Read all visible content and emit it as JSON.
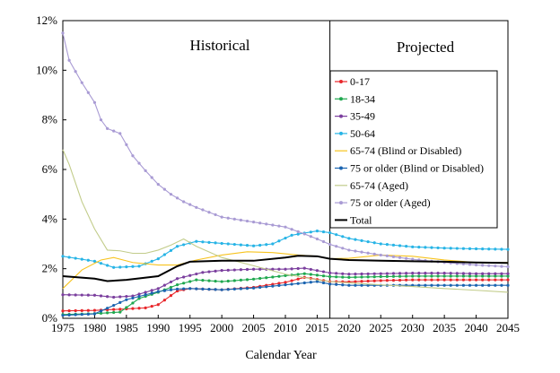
{
  "chart_data": {
    "type": "line",
    "title": "",
    "xlabel": "Calendar Year",
    "ylabel": "",
    "xlim": [
      1975,
      2045
    ],
    "ylim": [
      0,
      0.12
    ],
    "x_ticks": [
      "1975",
      "1980",
      "1985",
      "1990",
      "1995",
      "2000",
      "2005",
      "2010",
      "2015",
      "2020",
      "2025",
      "2030",
      "2035",
      "2040",
      "2045"
    ],
    "y_ticks": [
      "0%",
      "2%",
      "4%",
      "6%",
      "8%",
      "10%",
      "12%"
    ],
    "divider_year": 2017,
    "regions": {
      "historical": "Historical",
      "projected": "Projected"
    },
    "grid": false,
    "legend_position": "top-right",
    "series": [
      {
        "name": "0-17",
        "color": "#e8262a",
        "marker": true,
        "points": [
          [
            1975,
            0.003
          ],
          [
            1980,
            0.0032
          ],
          [
            1985,
            0.0038
          ],
          [
            1988,
            0.0042
          ],
          [
            1990,
            0.0055
          ],
          [
            1993,
            0.011
          ],
          [
            1995,
            0.012
          ],
          [
            2000,
            0.0115
          ],
          [
            2005,
            0.0125
          ],
          [
            2010,
            0.0145
          ],
          [
            2013,
            0.0165
          ],
          [
            2017,
            0.0148
          ],
          [
            2020,
            0.0147
          ],
          [
            2025,
            0.0152
          ],
          [
            2030,
            0.0155
          ],
          [
            2035,
            0.0155
          ],
          [
            2040,
            0.0155
          ],
          [
            2045,
            0.0155
          ]
        ]
      },
      {
        "name": "18-34",
        "color": "#1fa84f",
        "marker": true,
        "points": [
          [
            1975,
            0.0015
          ],
          [
            1980,
            0.0019
          ],
          [
            1984,
            0.0025
          ],
          [
            1987,
            0.008
          ],
          [
            1990,
            0.0105
          ],
          [
            1993,
            0.0135
          ],
          [
            1996,
            0.0155
          ],
          [
            2000,
            0.0148
          ],
          [
            2005,
            0.0158
          ],
          [
            2010,
            0.0172
          ],
          [
            2013,
            0.018
          ],
          [
            2017,
            0.0168
          ],
          [
            2020,
            0.0165
          ],
          [
            2025,
            0.0168
          ],
          [
            2030,
            0.017
          ],
          [
            2035,
            0.017
          ],
          [
            2040,
            0.017
          ],
          [
            2045,
            0.017
          ]
        ]
      },
      {
        "name": "35-49",
        "color": "#7b3f9e",
        "marker": true,
        "points": [
          [
            1975,
            0.0095
          ],
          [
            1980,
            0.0093
          ],
          [
            1983,
            0.0085
          ],
          [
            1986,
            0.009
          ],
          [
            1990,
            0.012
          ],
          [
            1993,
            0.016
          ],
          [
            1997,
            0.0185
          ],
          [
            2000,
            0.0193
          ],
          [
            2005,
            0.0198
          ],
          [
            2010,
            0.0198
          ],
          [
            2013,
            0.0202
          ],
          [
            2017,
            0.0183
          ],
          [
            2020,
            0.0178
          ],
          [
            2025,
            0.018
          ],
          [
            2030,
            0.0182
          ],
          [
            2035,
            0.0182
          ],
          [
            2040,
            0.018
          ],
          [
            2045,
            0.018
          ]
        ]
      },
      {
        "name": "50-64",
        "color": "#27b4e6",
        "marker": true,
        "points": [
          [
            1975,
            0.025
          ],
          [
            1980,
            0.023
          ],
          [
            1983,
            0.0205
          ],
          [
            1987,
            0.021
          ],
          [
            1990,
            0.024
          ],
          [
            1993,
            0.029
          ],
          [
            1996,
            0.031
          ],
          [
            2000,
            0.0302
          ],
          [
            2005,
            0.0292
          ],
          [
            2008,
            0.03
          ],
          [
            2011,
            0.0335
          ],
          [
            2015,
            0.0352
          ],
          [
            2017,
            0.0345
          ],
          [
            2020,
            0.0322
          ],
          [
            2025,
            0.03
          ],
          [
            2030,
            0.0288
          ],
          [
            2035,
            0.0283
          ],
          [
            2040,
            0.028
          ],
          [
            2045,
            0.0278
          ]
        ]
      },
      {
        "name": "65-74 (Blind or Disabled)",
        "color": "#f7c31e",
        "marker": false,
        "points": [
          [
            1975,
            0.012
          ],
          [
            1978,
            0.0195
          ],
          [
            1981,
            0.0235
          ],
          [
            1983,
            0.0245
          ],
          [
            1986,
            0.0225
          ],
          [
            1990,
            0.0215
          ],
          [
            1993,
            0.0215
          ],
          [
            1996,
            0.0235
          ],
          [
            2000,
            0.0255
          ],
          [
            2004,
            0.0268
          ],
          [
            2008,
            0.0265
          ],
          [
            2012,
            0.0255
          ],
          [
            2015,
            0.025
          ],
          [
            2017,
            0.024
          ],
          [
            2020,
            0.0242
          ],
          [
            2025,
            0.0255
          ],
          [
            2030,
            0.025
          ],
          [
            2035,
            0.0235
          ],
          [
            2040,
            0.0225
          ],
          [
            2045,
            0.0225
          ]
        ]
      },
      {
        "name": "75 or older (Blind or Disabled)",
        "color": "#1a64b0",
        "marker": true,
        "points": [
          [
            1975,
            0.0012
          ],
          [
            1980,
            0.0018
          ],
          [
            1985,
            0.0075
          ],
          [
            1990,
            0.0108
          ],
          [
            1993,
            0.0118
          ],
          [
            1995,
            0.012
          ],
          [
            2000,
            0.0115
          ],
          [
            2005,
            0.0122
          ],
          [
            2010,
            0.0135
          ],
          [
            2015,
            0.0148
          ],
          [
            2017,
            0.0138
          ],
          [
            2020,
            0.0133
          ],
          [
            2025,
            0.0133
          ],
          [
            2030,
            0.0133
          ],
          [
            2035,
            0.0133
          ],
          [
            2040,
            0.0133
          ],
          [
            2045,
            0.0133
          ]
        ]
      },
      {
        "name": "65-74 (Aged)",
        "color": "#c2cc8a",
        "marker": false,
        "points": [
          [
            1975,
            0.068
          ],
          [
            1976,
            0.062
          ],
          [
            1978,
            0.047
          ],
          [
            1980,
            0.036
          ],
          [
            1982,
            0.0275
          ],
          [
            1984,
            0.0272
          ],
          [
            1986,
            0.0262
          ],
          [
            1988,
            0.0262
          ],
          [
            1990,
            0.0275
          ],
          [
            1992,
            0.0295
          ],
          [
            1994,
            0.032
          ],
          [
            1996,
            0.029
          ],
          [
            2000,
            0.0245
          ],
          [
            2005,
            0.0212
          ],
          [
            2010,
            0.0178
          ],
          [
            2015,
            0.0155
          ],
          [
            2017,
            0.0148
          ],
          [
            2020,
            0.0143
          ],
          [
            2025,
            0.0135
          ],
          [
            2030,
            0.0128
          ],
          [
            2035,
            0.012
          ],
          [
            2040,
            0.0113
          ],
          [
            2045,
            0.0105
          ]
        ]
      },
      {
        "name": "75 or older (Aged)",
        "color": "#a99bd4",
        "marker": true,
        "points": [
          [
            1975,
            0.115
          ],
          [
            1976,
            0.104
          ],
          [
            1978,
            0.095
          ],
          [
            1980,
            0.087
          ],
          [
            1981,
            0.08
          ],
          [
            1982,
            0.0765
          ],
          [
            1984,
            0.0745
          ],
          [
            1985,
            0.07
          ],
          [
            1986,
            0.0655
          ],
          [
            1988,
            0.0595
          ],
          [
            1990,
            0.054
          ],
          [
            1992,
            0.05
          ],
          [
            1994,
            0.047
          ],
          [
            1996,
            0.0447
          ],
          [
            2000,
            0.0408
          ],
          [
            2005,
            0.0388
          ],
          [
            2010,
            0.0368
          ],
          [
            2013,
            0.034
          ],
          [
            2015,
            0.032
          ],
          [
            2017,
            0.0298
          ],
          [
            2020,
            0.0275
          ],
          [
            2025,
            0.0255
          ],
          [
            2030,
            0.0238
          ],
          [
            2035,
            0.0225
          ],
          [
            2040,
            0.0215
          ],
          [
            2045,
            0.0208
          ]
        ]
      },
      {
        "name": "Total",
        "color": "#000000",
        "marker": false,
        "thick": true,
        "points": [
          [
            1975,
            0.017
          ],
          [
            1980,
            0.016
          ],
          [
            1982,
            0.015
          ],
          [
            1985,
            0.0155
          ],
          [
            1990,
            0.017
          ],
          [
            1993,
            0.021
          ],
          [
            1995,
            0.0228
          ],
          [
            2000,
            0.0232
          ],
          [
            2005,
            0.0232
          ],
          [
            2010,
            0.0245
          ],
          [
            2012,
            0.0252
          ],
          [
            2015,
            0.025
          ],
          [
            2017,
            0.024
          ],
          [
            2020,
            0.0235
          ],
          [
            2025,
            0.0232
          ],
          [
            2030,
            0.023
          ],
          [
            2035,
            0.0228
          ],
          [
            2040,
            0.0225
          ],
          [
            2045,
            0.0223
          ]
        ]
      }
    ]
  }
}
